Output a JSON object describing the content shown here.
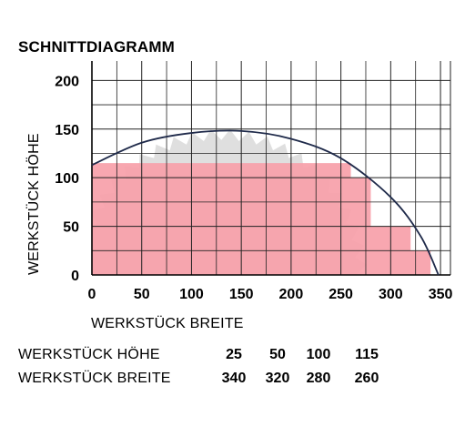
{
  "chart_data": {
    "type": "area",
    "title": "SCHNITTDIAGRAMM",
    "xlabel": "WERKSTÜCK BREITE",
    "ylabel": "WERKSTÜCK HÖHE",
    "xlim": [
      0,
      360
    ],
    "ylim": [
      0,
      220
    ],
    "x_ticks": [
      "0",
      "50",
      "100",
      "150",
      "200",
      "250",
      "300",
      "350"
    ],
    "y_ticks": [
      "0",
      "50",
      "100",
      "150",
      "200"
    ],
    "grid": true,
    "cut_envelope_curve": [
      {
        "x": 0,
        "y": 113
      },
      {
        "x": 50,
        "y": 136
      },
      {
        "x": 100,
        "y": 146
      },
      {
        "x": 150,
        "y": 148
      },
      {
        "x": 200,
        "y": 140
      },
      {
        "x": 250,
        "y": 120
      },
      {
        "x": 300,
        "y": 80
      },
      {
        "x": 330,
        "y": 40
      },
      {
        "x": 348,
        "y": 0
      }
    ],
    "cut_capacity_steps": [
      {
        "height": 115,
        "width": 260
      },
      {
        "height": 100,
        "width": 280
      },
      {
        "height": 50,
        "width": 320
      },
      {
        "height": 25,
        "width": 340
      }
    ],
    "colors": {
      "fill": "#f7a0a9",
      "curve": "#1f2a4a",
      "grid": "#222222",
      "blade": "#d9d9d9"
    }
  },
  "table": {
    "rows": [
      {
        "label": "WERKSTÜCK HÖHE",
        "values": [
          "25",
          "50",
          "100",
          "115"
        ]
      },
      {
        "label": "WERKSTÜCK BREITE",
        "values": [
          "340",
          "320",
          "280",
          "260"
        ]
      }
    ]
  }
}
